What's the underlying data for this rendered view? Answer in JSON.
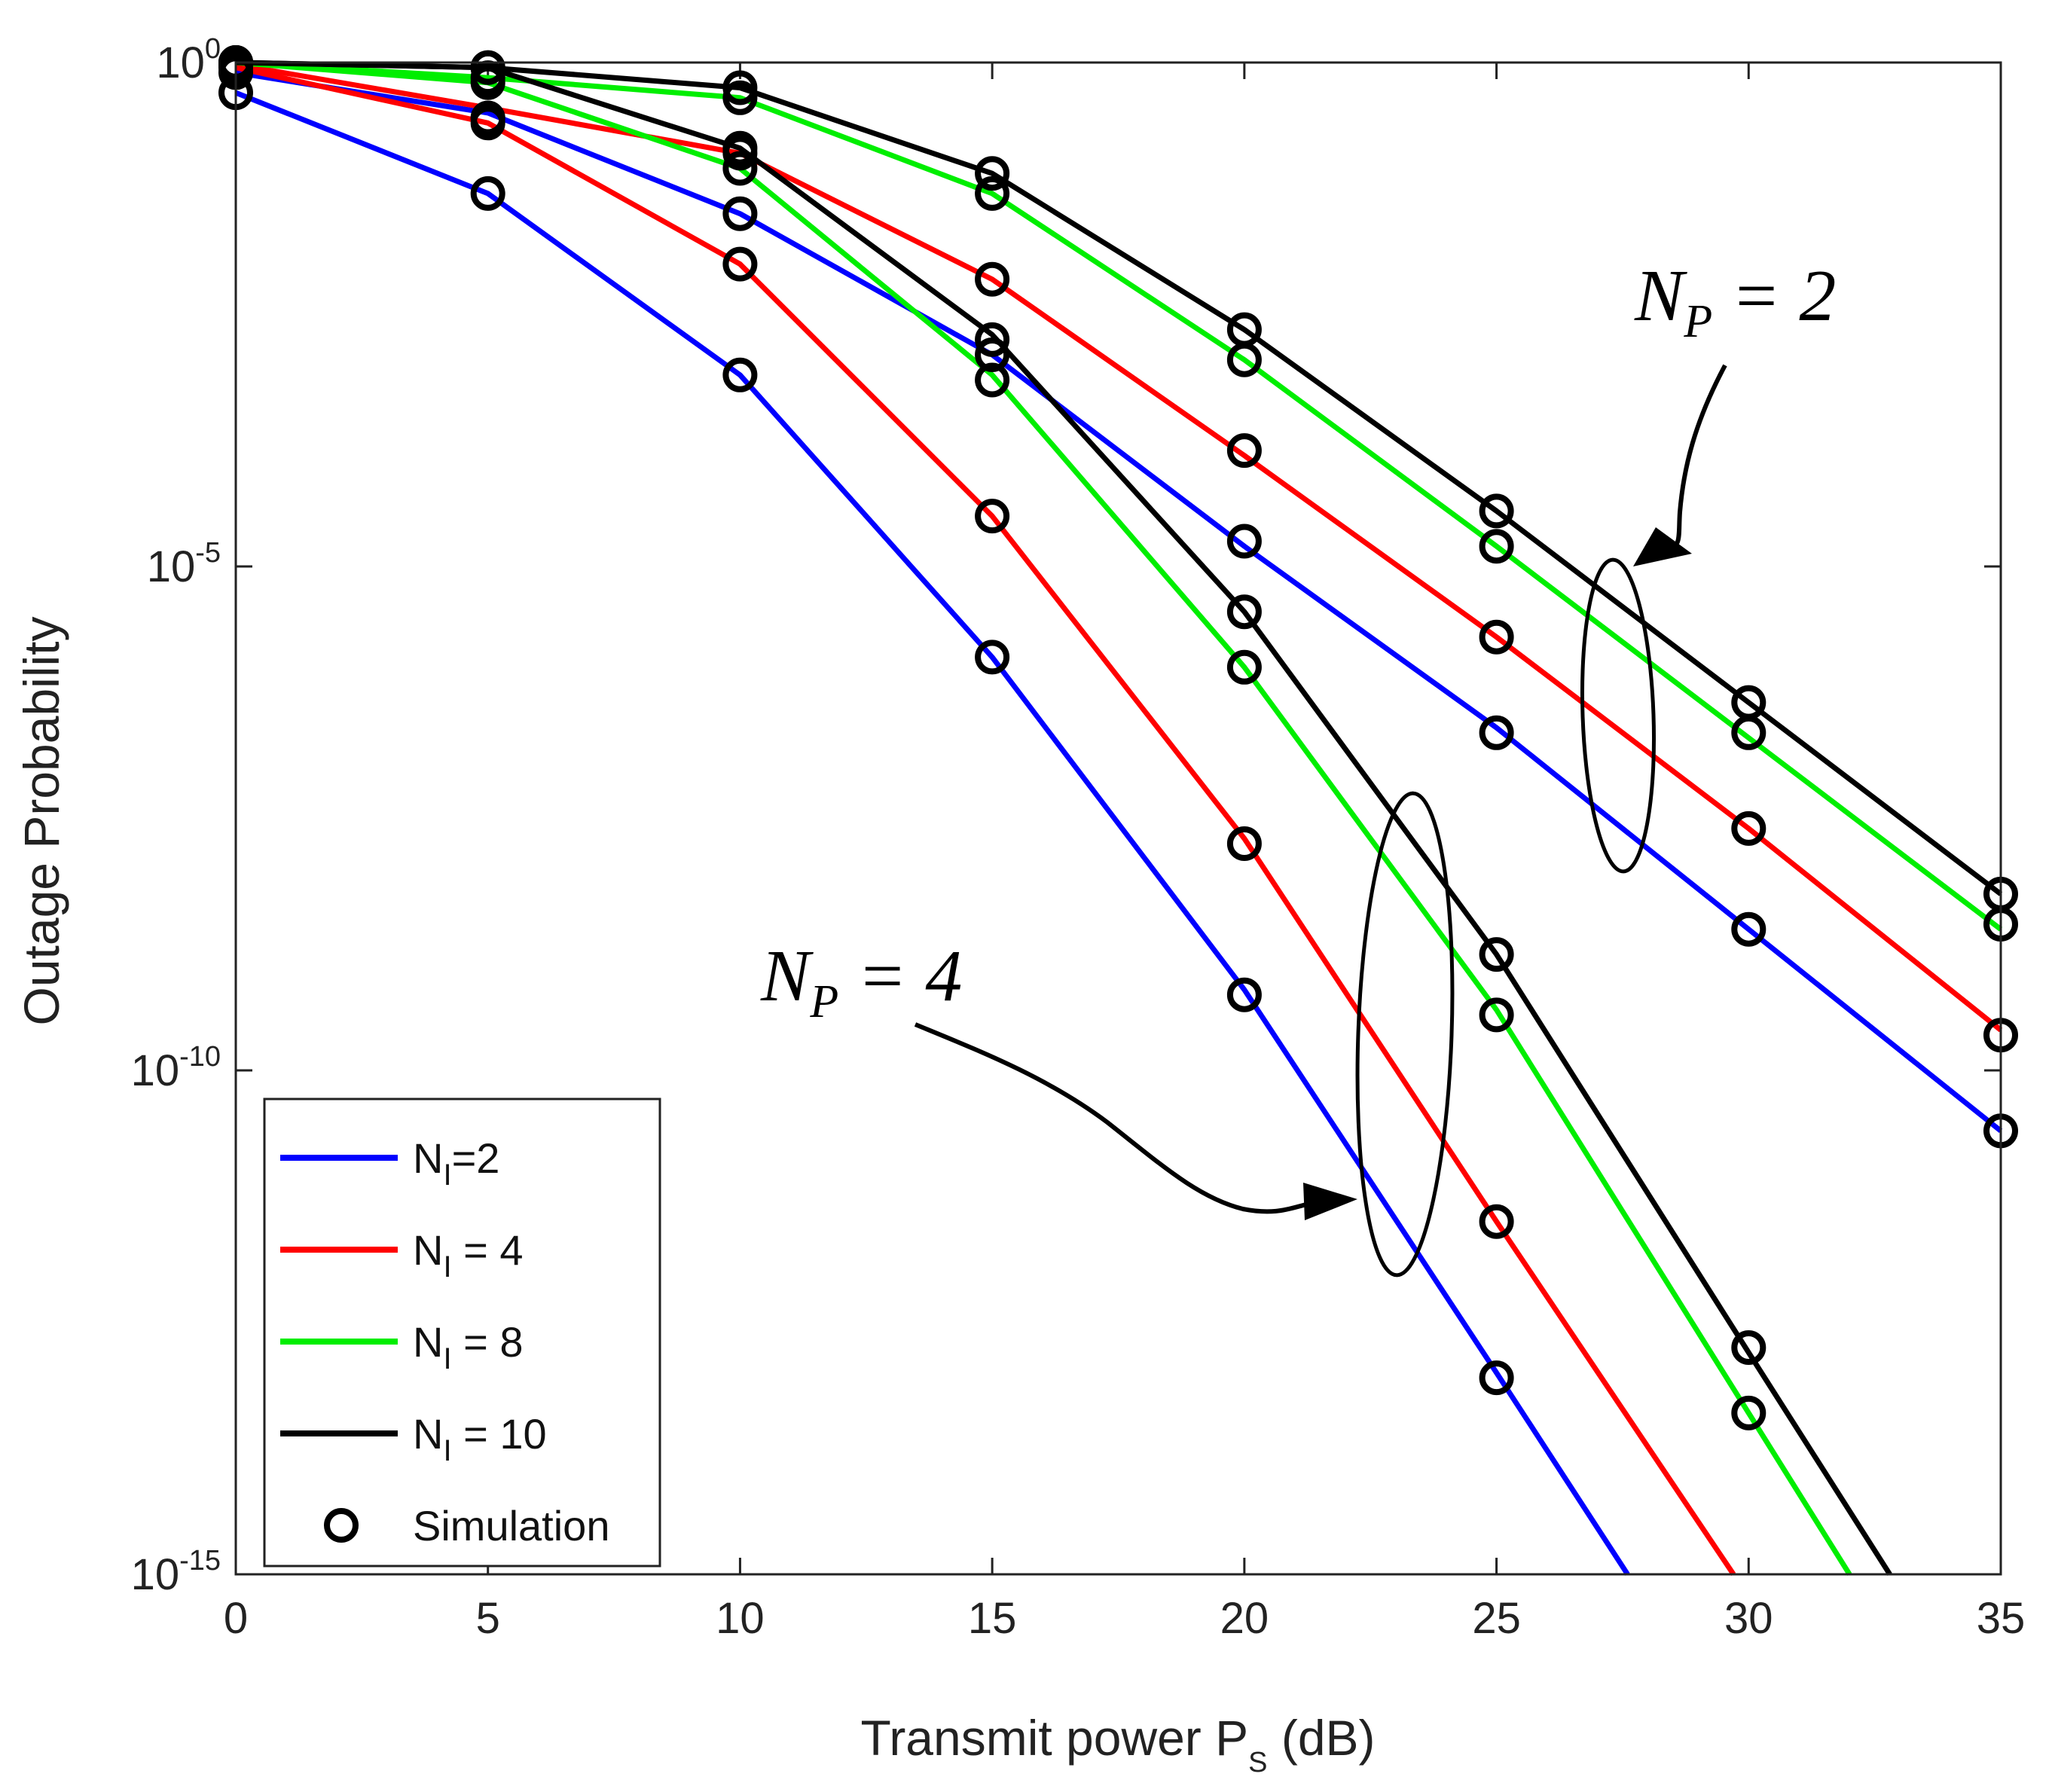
{
  "chart_data": {
    "type": "line",
    "xlabel": {
      "main": "Transmit power P",
      "sub": "S",
      "suffix": " (dB)"
    },
    "ylabel": "Outage Probability",
    "xlim": [
      0,
      35
    ],
    "ylim_log10": [
      -15,
      0
    ],
    "x_ticks": [
      "0",
      "5",
      "10",
      "15",
      "20",
      "25",
      "30",
      "35"
    ],
    "y_ticks": [
      {
        "base": "10",
        "exp": "0",
        "log": 0
      },
      {
        "base": "10",
        "exp": "-5",
        "log": -5
      },
      {
        "base": "10",
        "exp": "-10",
        "log": -10
      },
      {
        "base": "10",
        "exp": "-15",
        "log": -15
      }
    ],
    "series": [
      {
        "name": "NI=2, NP=2",
        "legend": "NI=2",
        "color": "#0000ff",
        "group": "NP=2",
        "x": [
          0,
          5,
          10,
          15,
          20,
          25,
          30,
          35
        ],
        "log10_y": [
          -0.1,
          -0.5,
          -1.5,
          -2.9,
          -4.8,
          -6.6,
          -8.6,
          -10.6
        ],
        "sim_log10_y": [
          -0.1,
          -0.55,
          -1.5,
          -2.9,
          -4.75,
          -6.65,
          -8.6,
          -10.6
        ]
      },
      {
        "name": "NI=4, NP=2",
        "legend": "NI = 4",
        "color": "#ff0000",
        "group": "NP=2",
        "x": [
          0,
          5,
          10,
          15,
          20,
          25,
          30,
          35
        ],
        "log10_y": [
          -0.02,
          -0.45,
          -0.9,
          -2.15,
          -3.9,
          -5.7,
          -7.6,
          -9.6
        ],
        "sim_log10_y": [
          -0.02,
          -0.55,
          -0.9,
          -2.15,
          -3.85,
          -5.7,
          -7.6,
          -9.65
        ]
      },
      {
        "name": "NI=8, NP=2",
        "legend": "NI = 8",
        "color": "#00ee00",
        "group": "NP=2",
        "x": [
          0,
          5,
          10,
          15,
          20,
          25,
          30,
          35
        ],
        "log10_y": [
          0,
          -0.15,
          -0.35,
          -1.3,
          -2.95,
          -4.8,
          -6.7,
          -8.6
        ],
        "sim_log10_y": [
          0,
          -0.15,
          -0.35,
          -1.3,
          -2.95,
          -4.8,
          -6.65,
          -8.55
        ]
      },
      {
        "name": "NI=10, NP=2",
        "legend": "NI = 10",
        "color": "#000000",
        "group": "NP=2",
        "x": [
          0,
          5,
          10,
          15,
          20,
          25,
          30,
          35
        ],
        "log10_y": [
          0,
          -0.05,
          -0.25,
          -1.1,
          -2.65,
          -4.45,
          -6.35,
          -8.25
        ],
        "sim_log10_y": [
          0,
          -0.05,
          -0.25,
          -1.1,
          -2.65,
          -4.45,
          -6.35,
          -8.25
        ]
      },
      {
        "name": "NI=2, NP=4",
        "legend": "NI=2",
        "color": "#0000ff",
        "group": "NP=4",
        "x": [
          0,
          5,
          10,
          15,
          20,
          25,
          27.6
        ],
        "log10_y": [
          -0.3,
          -1.3,
          -3.1,
          -5.9,
          -9.2,
          -13.0,
          -15.0
        ],
        "sim_x": [
          0,
          5,
          10,
          15,
          20,
          25
        ],
        "sim_log10_y": [
          -0.3,
          -1.3,
          -3.1,
          -5.9,
          -9.25,
          -13.05
        ]
      },
      {
        "name": "NI=4, NP=4",
        "legend": "NI = 4",
        "color": "#ff0000",
        "group": "NP=4",
        "x": [
          0,
          5,
          10,
          15,
          20,
          25,
          29.7
        ],
        "log10_y": [
          -0.05,
          -0.6,
          -2.0,
          -4.5,
          -7.7,
          -11.5,
          -15.0
        ],
        "sim_x": [
          0,
          5,
          10,
          15,
          20,
          25
        ],
        "sim_log10_y": [
          -0.05,
          -0.6,
          -2.0,
          -4.5,
          -7.75,
          -11.5
        ]
      },
      {
        "name": "NI=8, NP=4",
        "legend": "NI = 8",
        "color": "#00ee00",
        "group": "NP=4",
        "x": [
          0,
          5,
          10,
          15,
          20,
          25,
          30,
          32.0
        ],
        "log10_y": [
          0,
          -0.2,
          -1.05,
          -3.1,
          -6.0,
          -9.4,
          -13.4,
          -15.0
        ],
        "sim_x": [
          0,
          5,
          10,
          15,
          20,
          25,
          30
        ],
        "sim_log10_y": [
          0,
          -0.2,
          -1.05,
          -3.15,
          -6.0,
          -9.45,
          -13.4
        ]
      },
      {
        "name": "NI=10, NP=4",
        "legend": "NI = 10",
        "color": "#000000",
        "group": "NP=4",
        "x": [
          0,
          5,
          10,
          15,
          20,
          25,
          30,
          32.8
        ],
        "log10_y": [
          0,
          -0.05,
          -0.85,
          -2.7,
          -5.45,
          -8.85,
          -12.8,
          -15.0
        ],
        "sim_x": [
          0,
          5,
          10,
          15,
          20,
          25,
          30
        ],
        "sim_log10_y": [
          0,
          -0.05,
          -0.85,
          -2.75,
          -5.45,
          -8.85,
          -12.75
        ]
      }
    ],
    "legend": {
      "position": "bottom-left",
      "entries": [
        {
          "label_main": "N",
          "label_sub": "I",
          "label_rest": "=2",
          "color": "#0000ff",
          "kind": "line"
        },
        {
          "label_main": "N",
          "label_sub": "I",
          "label_rest": " = 4",
          "color": "#ff0000",
          "kind": "line"
        },
        {
          "label_main": "N",
          "label_sub": "I",
          "label_rest": " = 8",
          "color": "#00ee00",
          "kind": "line"
        },
        {
          "label_main": "N",
          "label_sub": "I",
          "label_rest": " = 10",
          "color": "#000000",
          "kind": "line"
        },
        {
          "label_main": "Simulation",
          "label_sub": "",
          "label_rest": "",
          "color": "#000000",
          "kind": "marker"
        }
      ]
    },
    "annotations": [
      {
        "id": "np2",
        "label_main": "N",
        "label_sub": "P",
        "label_rest": " = 2"
      },
      {
        "id": "np4",
        "label_main": "N",
        "label_sub": "P",
        "label_rest": " = 4"
      }
    ]
  }
}
